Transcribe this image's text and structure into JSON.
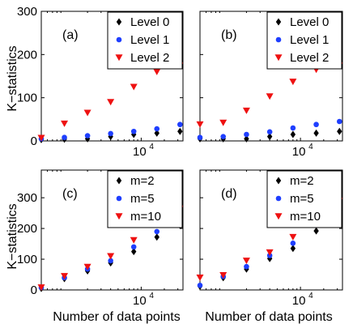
{
  "figure": {
    "ylabel": "K−statistics",
    "xlabel": "Number of data points"
  },
  "chart_data": [
    {
      "type": "scatter",
      "panel_label": "(a)",
      "x": [
        500,
        1000,
        2000,
        4000,
        8000,
        16000,
        32000
      ],
      "xscale": "log",
      "xtick": {
        "base": "10",
        "exp": "4"
      },
      "ylim": [
        0,
        300
      ],
      "yticks": [
        "0",
        "100",
        "200",
        "300"
      ],
      "legend_position": "top-right",
      "series": [
        {
          "name": "Level 0",
          "marker": "diamond",
          "color": "#000000",
          "values": [
            3,
            4,
            5,
            10,
            15,
            18,
            22
          ]
        },
        {
          "name": "Level 1",
          "marker": "circle",
          "color": "#1f3fff",
          "values": [
            5,
            8,
            12,
            17,
            22,
            28,
            38
          ]
        },
        {
          "name": "Level 2",
          "marker": "triangle-down",
          "color": "#ee1111",
          "values": [
            7,
            40,
            65,
            90,
            125,
            160,
            175
          ]
        }
      ]
    },
    {
      "type": "scatter",
      "panel_label": "(b)",
      "x": [
        500,
        1000,
        2000,
        4000,
        8000,
        16000,
        32000
      ],
      "xscale": "log",
      "xtick": {
        "base": "10",
        "exp": "4"
      },
      "ylim": [
        0,
        300
      ],
      "yticks": [],
      "legend_position": "top-right",
      "series": [
        {
          "name": "Level 0",
          "marker": "diamond",
          "color": "#000000",
          "values": [
            5,
            5,
            5,
            10,
            15,
            18,
            22
          ]
        },
        {
          "name": "Level 1",
          "marker": "circle",
          "color": "#1f3fff",
          "values": [
            8,
            10,
            15,
            21,
            30,
            38,
            45
          ]
        },
        {
          "name": "Level 2",
          "marker": "triangle-down",
          "color": "#ee1111",
          "values": [
            38,
            42,
            70,
            103,
            137,
            165,
            175
          ]
        }
      ]
    },
    {
      "type": "scatter",
      "panel_label": "(c)",
      "x": [
        500,
        1000,
        2000,
        4000,
        8000,
        16000,
        32000
      ],
      "xscale": "log",
      "xtick": {
        "base": "10",
        "exp": "4"
      },
      "ylim": [
        0,
        390
      ],
      "yticks": [
        "0",
        "100",
        "200",
        "300"
      ],
      "legend_position": "top-right",
      "series": [
        {
          "name": "m=2",
          "marker": "diamond",
          "color": "#000000",
          "values": [
            5,
            37,
            62,
            88,
            125,
            172,
            210
          ]
        },
        {
          "name": "m=5",
          "marker": "circle",
          "color": "#1f3fff",
          "values": [
            8,
            40,
            68,
            95,
            140,
            190,
            230
          ]
        },
        {
          "name": "m=10",
          "marker": "triangle-down",
          "color": "#ee1111",
          "values": [
            8,
            45,
            75,
            110,
            162,
            220,
            265
          ]
        }
      ]
    },
    {
      "type": "scatter",
      "panel_label": "(d)",
      "x": [
        500,
        1000,
        2000,
        4000,
        8000,
        16000,
        32000
      ],
      "xscale": "log",
      "xtick": {
        "base": "10",
        "exp": "4"
      },
      "ylim": [
        0,
        390
      ],
      "yticks": [],
      "legend_position": "top-right",
      "series": [
        {
          "name": "m=2",
          "marker": "diamond",
          "color": "#000000",
          "values": [
            12,
            40,
            68,
            102,
            135,
            192,
            240
          ]
        },
        {
          "name": "m=5",
          "marker": "circle",
          "color": "#1f3fff",
          "values": [
            15,
            44,
            76,
            112,
            152,
            210,
            255
          ]
        },
        {
          "name": "m=10",
          "marker": "triangle-down",
          "color": "#ee1111",
          "values": [
            40,
            48,
            95,
            122,
            172,
            240,
            290
          ]
        }
      ]
    }
  ]
}
